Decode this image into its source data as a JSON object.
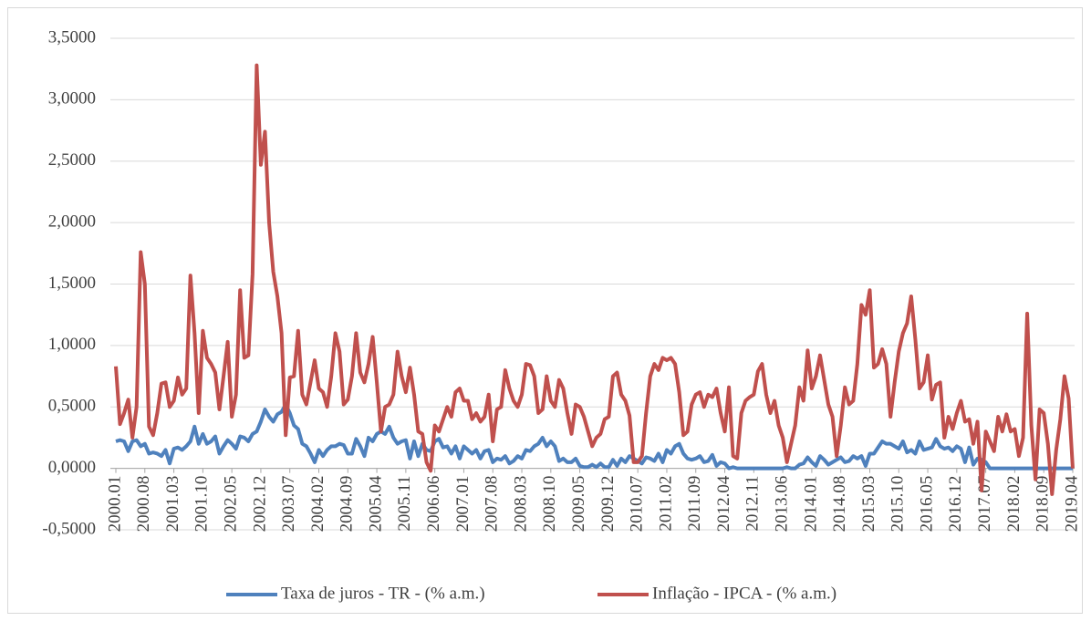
{
  "chart_data": {
    "type": "line",
    "categories": [
      "2000.01",
      null,
      null,
      null,
      null,
      null,
      null,
      "2000.08",
      null,
      null,
      null,
      null,
      null,
      null,
      "2001.03",
      null,
      null,
      null,
      null,
      null,
      null,
      "2001.10",
      null,
      null,
      null,
      null,
      null,
      null,
      "2002.05",
      null,
      null,
      null,
      null,
      null,
      null,
      "2002.12",
      null,
      null,
      null,
      null,
      null,
      null,
      "2003.07",
      null,
      null,
      null,
      null,
      null,
      null,
      "2004.02",
      null,
      null,
      null,
      null,
      null,
      null,
      "2004.09",
      null,
      null,
      null,
      null,
      null,
      null,
      "2005.04",
      null,
      null,
      null,
      null,
      null,
      null,
      "2005.11",
      null,
      null,
      null,
      null,
      null,
      null,
      "2006.06",
      null,
      null,
      null,
      null,
      null,
      null,
      "2007.01",
      null,
      null,
      null,
      null,
      null,
      null,
      "2007.08",
      null,
      null,
      null,
      null,
      null,
      null,
      "2008.03",
      null,
      null,
      null,
      null,
      null,
      null,
      "2008.10",
      null,
      null,
      null,
      null,
      null,
      null,
      "2009.05",
      null,
      null,
      null,
      null,
      null,
      null,
      "2009.12",
      null,
      null,
      null,
      null,
      null,
      null,
      "2010.07",
      null,
      null,
      null,
      null,
      null,
      null,
      "2011.02",
      null,
      null,
      null,
      null,
      null,
      null,
      "2011.09",
      null,
      null,
      null,
      null,
      null,
      null,
      "2012.04",
      null,
      null,
      null,
      null,
      null,
      null,
      "2012.11",
      null,
      null,
      null,
      null,
      null,
      null,
      "2013.06",
      null,
      null,
      null,
      null,
      null,
      null,
      "2014.01",
      null,
      null,
      null,
      null,
      null,
      null,
      "2014.08",
      null,
      null,
      null,
      null,
      null,
      null,
      "2015.03",
      null,
      null,
      null,
      null,
      null,
      null,
      "2015.10",
      null,
      null,
      null,
      null,
      null,
      null,
      "2016.05",
      null,
      null,
      null,
      null,
      null,
      null,
      "2016.12",
      null,
      null,
      null,
      null,
      null,
      null,
      "2017.07",
      null,
      null,
      null,
      null,
      null,
      null,
      "2018.02",
      null,
      null,
      null,
      null,
      null,
      null,
      "2018.09",
      null,
      null,
      null,
      null,
      null,
      null,
      "2019.04"
    ],
    "series": [
      {
        "name": "Taxa de juros - TR - (% a.m.)",
        "color": "#4f81bd",
        "values": [
          0.22,
          0.23,
          0.22,
          0.14,
          0.22,
          0.23,
          0.18,
          0.2,
          0.12,
          0.13,
          0.12,
          0.1,
          0.15,
          0.04,
          0.16,
          0.17,
          0.15,
          0.18,
          0.22,
          0.34,
          0.2,
          0.28,
          0.2,
          0.22,
          0.26,
          0.12,
          0.18,
          0.23,
          0.2,
          0.16,
          0.26,
          0.25,
          0.22,
          0.28,
          0.3,
          0.38,
          0.48,
          0.42,
          0.38,
          0.44,
          0.46,
          0.52,
          0.45,
          0.35,
          0.32,
          0.2,
          0.18,
          0.12,
          0.05,
          0.15,
          0.1,
          0.15,
          0.18,
          0.18,
          0.2,
          0.19,
          0.12,
          0.12,
          0.24,
          0.18,
          0.1,
          0.25,
          0.22,
          0.28,
          0.3,
          0.28,
          0.34,
          0.25,
          0.2,
          0.22,
          0.23,
          0.08,
          0.22,
          0.1,
          0.2,
          0.15,
          0.14,
          0.22,
          0.24,
          0.17,
          0.18,
          0.12,
          0.18,
          0.08,
          0.18,
          0.15,
          0.12,
          0.15,
          0.08,
          0.14,
          0.15,
          0.05,
          0.08,
          0.07,
          0.1,
          0.04,
          0.06,
          0.1,
          0.08,
          0.15,
          0.14,
          0.18,
          0.2,
          0.25,
          0.18,
          0.22,
          0.18,
          0.06,
          0.08,
          0.05,
          0.05,
          0.08,
          0.02,
          0.01,
          0.01,
          0.03,
          0.01,
          0.04,
          0.01,
          0.01,
          0.07,
          0.02,
          0.08,
          0.05,
          0.1,
          0.08,
          0.06,
          0.04,
          0.09,
          0.08,
          0.06,
          0.12,
          0.05,
          0.15,
          0.12,
          0.18,
          0.2,
          0.12,
          0.08,
          0.07,
          0.08,
          0.1,
          0.05,
          0.06,
          0.11,
          0.02,
          0.05,
          0.04,
          0,
          0.01,
          0,
          0,
          0,
          0,
          0,
          0,
          0,
          0,
          0,
          0,
          0,
          0,
          0.01,
          0,
          0,
          0.03,
          0.04,
          0.09,
          0.05,
          0.02,
          0.1,
          0.07,
          0.03,
          0.05,
          0.07,
          0.09,
          0.05,
          0.06,
          0.1,
          0.08,
          0.1,
          0.02,
          0.12,
          0.12,
          0.17,
          0.22,
          0.2,
          0.2,
          0.18,
          0.16,
          0.22,
          0.13,
          0.15,
          0.12,
          0.22,
          0.15,
          0.16,
          0.17,
          0.24,
          0.18,
          0.16,
          0.17,
          0.14,
          0.18,
          0.16,
          0.05,
          0.17,
          0.03,
          0.08,
          0.07,
          0.05,
          0,
          0,
          0,
          0,
          0,
          0,
          0,
          0,
          0,
          0,
          0,
          0,
          0,
          0,
          0,
          0,
          0,
          0,
          0,
          0,
          0
        ]
      },
      {
        "name": "Inflação - IPCA - (% a.m.)",
        "color": "#c0504d",
        "values": [
          0.83,
          0.36,
          0.45,
          0.56,
          0.25,
          0.5,
          1.76,
          1.5,
          0.34,
          0.27,
          0.45,
          0.69,
          0.7,
          0.5,
          0.55,
          0.74,
          0.6,
          0.65,
          1.57,
          1.1,
          0.45,
          1.12,
          0.9,
          0.85,
          0.78,
          0.48,
          0.75,
          1.03,
          0.42,
          0.6,
          1.45,
          0.9,
          0.92,
          1.58,
          3.28,
          2.47,
          2.74,
          2.0,
          1.6,
          1.4,
          1.1,
          0.27,
          0.74,
          0.75,
          1.12,
          0.6,
          0.52,
          0.7,
          0.88,
          0.65,
          0.62,
          0.5,
          0.75,
          1.1,
          0.95,
          0.52,
          0.56,
          0.75,
          1.1,
          0.78,
          0.7,
          0.85,
          1.07,
          0.7,
          0.3,
          0.5,
          0.52,
          0.6,
          0.95,
          0.75,
          0.62,
          0.82,
          0.6,
          0.3,
          0.28,
          0.05,
          -0.02,
          0.35,
          0.3,
          0.4,
          0.5,
          0.42,
          0.62,
          0.65,
          0.55,
          0.55,
          0.4,
          0.45,
          0.38,
          0.42,
          0.6,
          0.22,
          0.48,
          0.5,
          0.8,
          0.65,
          0.55,
          0.5,
          0.6,
          0.85,
          0.84,
          0.75,
          0.45,
          0.48,
          0.75,
          0.55,
          0.5,
          0.72,
          0.65,
          0.45,
          0.28,
          0.52,
          0.5,
          0.42,
          0.3,
          0.18,
          0.25,
          0.28,
          0.4,
          0.42,
          0.75,
          0.78,
          0.6,
          0.55,
          0.43,
          0.05,
          0.05,
          0.1,
          0.45,
          0.75,
          0.85,
          0.8,
          0.9,
          0.88,
          0.9,
          0.85,
          0.62,
          0.27,
          0.3,
          0.52,
          0.6,
          0.62,
          0.5,
          0.6,
          0.58,
          0.65,
          0.45,
          0.3,
          0.66,
          0.1,
          0.08,
          0.45,
          0.55,
          0.58,
          0.6,
          0.79,
          0.85,
          0.6,
          0.45,
          0.55,
          0.35,
          0.25,
          0.05,
          0.2,
          0.35,
          0.66,
          0.55,
          0.96,
          0.65,
          0.75,
          0.92,
          0.72,
          0.52,
          0.42,
          0.1,
          0.35,
          0.66,
          0.52,
          0.55,
          0.85,
          1.33,
          1.25,
          1.45,
          0.82,
          0.85,
          0.97,
          0.85,
          0.42,
          0.7,
          0.95,
          1.1,
          1.18,
          1.4,
          1.05,
          0.65,
          0.7,
          0.92,
          0.56,
          0.68,
          0.7,
          0.25,
          0.42,
          0.32,
          0.45,
          0.55,
          0.38,
          0.4,
          0.2,
          0.38,
          -0.18,
          0.3,
          0.22,
          0.14,
          0.42,
          0.3,
          0.44,
          0.3,
          0.32,
          0.1,
          0.25,
          1.26,
          0.35,
          -0.09,
          0.48,
          0.45,
          0.2,
          -0.21,
          0.15,
          0.4,
          0.75,
          0.57,
          0.0
        ]
      }
    ],
    "ylim": [
      -0.5,
      3.5
    ],
    "yticks": [
      {
        "value": -0.5,
        "label": "-0,5000"
      },
      {
        "value": 0,
        "label": "0,0000"
      },
      {
        "value": 0.5,
        "label": "0,5000"
      },
      {
        "value": 1,
        "label": "1,0000"
      },
      {
        "value": 1.5,
        "label": "1,5000"
      },
      {
        "value": 2,
        "label": "2,0000"
      },
      {
        "value": 2.5,
        "label": "2,5000"
      },
      {
        "value": 3,
        "label": "3,0000"
      },
      {
        "value": 3.5,
        "label": "3,5000"
      }
    ],
    "grid": true,
    "legend": "bottom"
  }
}
